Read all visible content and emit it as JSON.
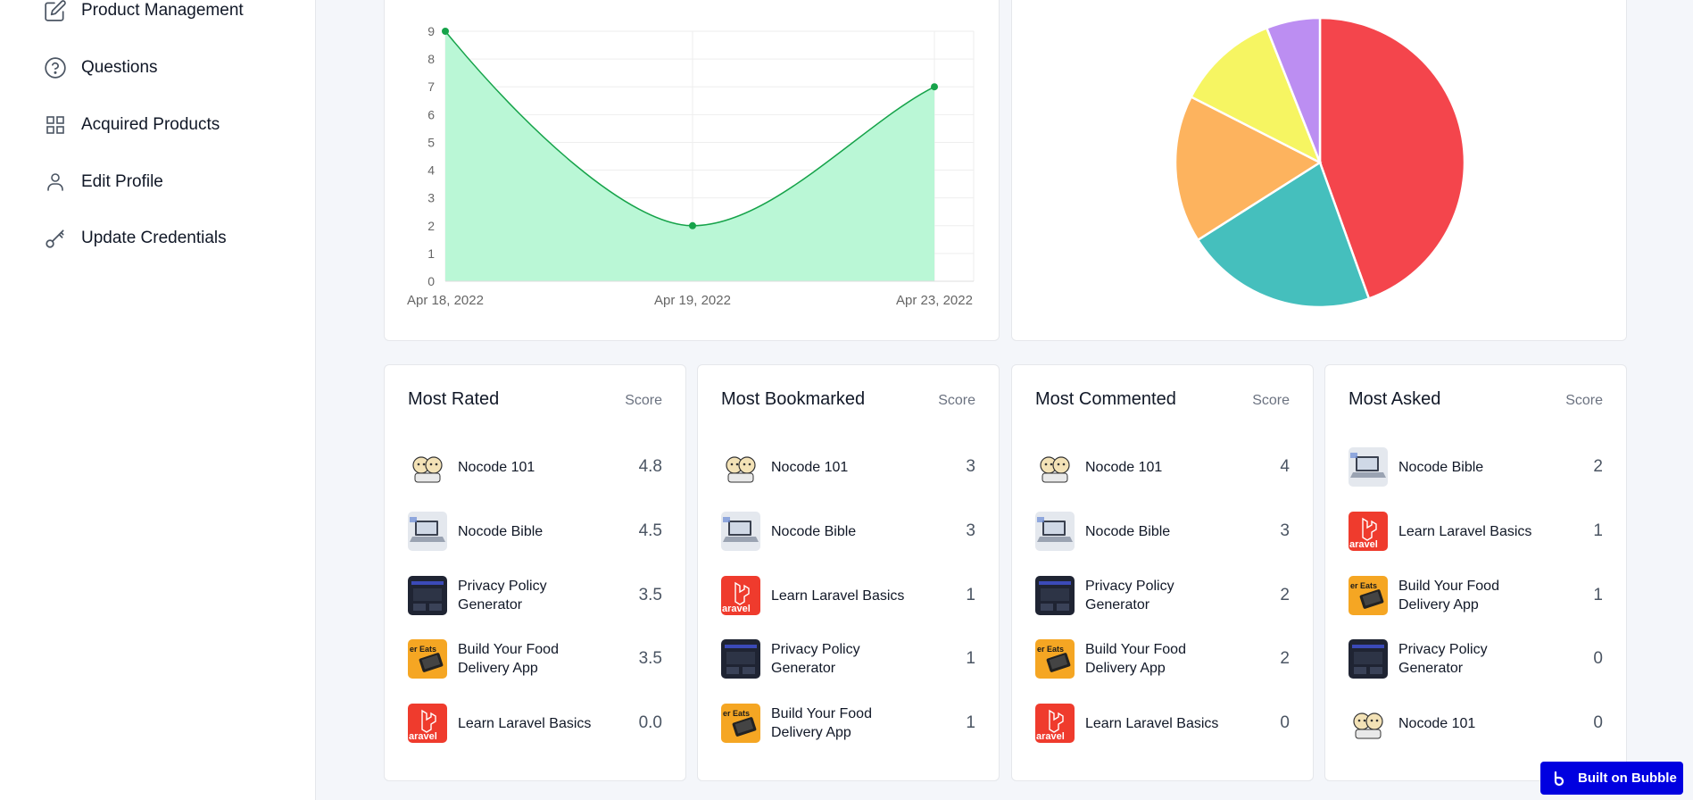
{
  "sidebar": {
    "items": [
      {
        "label": "Product Management",
        "icon": "edit-icon"
      },
      {
        "label": "Questions",
        "icon": "question-circle-icon"
      },
      {
        "label": "Acquired Products",
        "icon": "grid-icon"
      },
      {
        "label": "Edit Profile",
        "icon": "user-icon"
      },
      {
        "label": "Update Credentials",
        "icon": "key-icon"
      }
    ]
  },
  "colors": {
    "line_fill": "#baf7d6",
    "line_stroke": "#16a34a",
    "pie": [
      "#f4454c",
      "#45bfbd",
      "#fdb35e",
      "#f6f562",
      "#bc8ef2"
    ],
    "badge": "#0000e0"
  },
  "chart_data": [
    {
      "type": "area",
      "x": [
        "Apr 18, 2022",
        "Apr 19, 2022",
        "Apr 23, 2022"
      ],
      "series": [
        {
          "values": [
            9,
            2,
            7
          ]
        }
      ],
      "y_ticks": [
        "0",
        "1",
        "2",
        "3",
        "4",
        "5",
        "6",
        "7",
        "8",
        "9"
      ],
      "ylim": [
        0,
        9
      ],
      "grid": true
    },
    {
      "type": "pie",
      "values": [
        44.5,
        21.5,
        16.5,
        11.5,
        6
      ],
      "colors": [
        "#f4454c",
        "#45bfbd",
        "#fdb35e",
        "#f6f562",
        "#bc8ef2"
      ]
    }
  ],
  "lists": [
    {
      "title": "Most Rated",
      "score_label": "Score",
      "rows": [
        {
          "name": "Nocode 101",
          "value": "4.8",
          "thumb": "cartoon"
        },
        {
          "name": "Nocode Bible",
          "value": "4.5",
          "thumb": "laptop"
        },
        {
          "name": "Privacy Policy Generator",
          "value": "3.5",
          "thumb": "dark"
        },
        {
          "name": "Build Your Food Delivery App",
          "value": "3.5",
          "thumb": "food"
        },
        {
          "name": "Learn Laravel Basics",
          "value": "0.0",
          "thumb": "laravel"
        }
      ]
    },
    {
      "title": "Most Bookmarked",
      "score_label": "Score",
      "rows": [
        {
          "name": "Nocode 101",
          "value": "3",
          "thumb": "cartoon"
        },
        {
          "name": "Nocode Bible",
          "value": "3",
          "thumb": "laptop"
        },
        {
          "name": "Learn Laravel Basics",
          "value": "1",
          "thumb": "laravel"
        },
        {
          "name": "Privacy Policy Generator",
          "value": "1",
          "thumb": "dark"
        },
        {
          "name": "Build Your Food Delivery App",
          "value": "1",
          "thumb": "food"
        }
      ]
    },
    {
      "title": "Most Commented",
      "score_label": "Score",
      "rows": [
        {
          "name": "Nocode 101",
          "value": "4",
          "thumb": "cartoon"
        },
        {
          "name": "Nocode Bible",
          "value": "3",
          "thumb": "laptop"
        },
        {
          "name": "Privacy Policy Generator",
          "value": "2",
          "thumb": "dark"
        },
        {
          "name": "Build Your Food Delivery App",
          "value": "2",
          "thumb": "food"
        },
        {
          "name": "Learn Laravel Basics",
          "value": "0",
          "thumb": "laravel"
        }
      ]
    },
    {
      "title": "Most Asked",
      "score_label": "Score",
      "rows": [
        {
          "name": "Nocode Bible",
          "value": "2",
          "thumb": "laptop"
        },
        {
          "name": "Learn Laravel Basics",
          "value": "1",
          "thumb": "laravel"
        },
        {
          "name": "Build Your Food Delivery App",
          "value": "1",
          "thumb": "food"
        },
        {
          "name": "Privacy Policy Generator",
          "value": "0",
          "thumb": "dark"
        },
        {
          "name": "Nocode 101",
          "value": "0",
          "thumb": "cartoon"
        }
      ]
    }
  ],
  "badge": {
    "label": "Built on Bubble",
    "icon": "bubble-logo-icon"
  }
}
